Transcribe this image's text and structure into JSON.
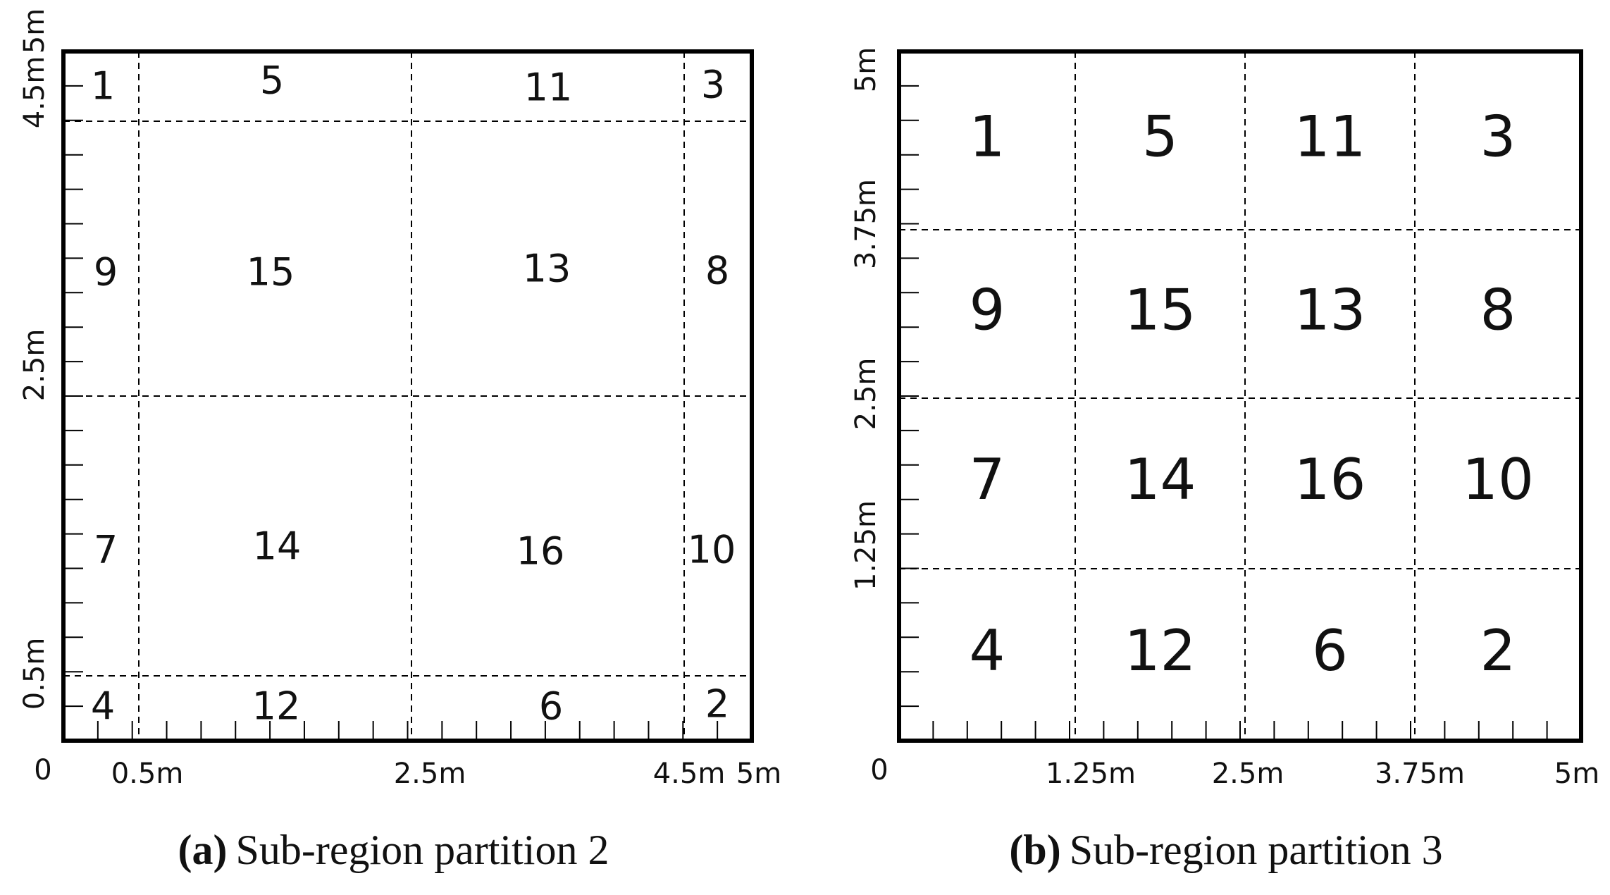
{
  "panels": [
    {
      "label": "(a)",
      "caption": "Sub-region partition 2",
      "origin": "0",
      "x_labels": [
        "0.5m",
        "2.5m",
        "4.5m",
        "5m"
      ],
      "y_labels": [
        "0.5m",
        "2.5m",
        "4.5m",
        "5m"
      ],
      "regions": [
        [
          "1",
          "5",
          "11",
          "3"
        ],
        [
          "9",
          "15",
          "13",
          "8"
        ],
        [
          "7",
          "14",
          "16",
          "10"
        ],
        [
          "4",
          "12",
          "6",
          "2"
        ]
      ]
    },
    {
      "label": "(b)",
      "caption": "Sub-region partition 3",
      "origin": "0",
      "x_labels": [
        "1.25m",
        "2.5m",
        "3.75m",
        "5m"
      ],
      "y_labels": [
        "1.25m",
        "2.5m",
        "3.75m",
        "5m"
      ],
      "regions": [
        [
          "1",
          "5",
          "11",
          "3"
        ],
        [
          "9",
          "15",
          "13",
          "8"
        ],
        [
          "7",
          "14",
          "16",
          "10"
        ],
        [
          "4",
          "12",
          "6",
          "2"
        ]
      ]
    }
  ]
}
